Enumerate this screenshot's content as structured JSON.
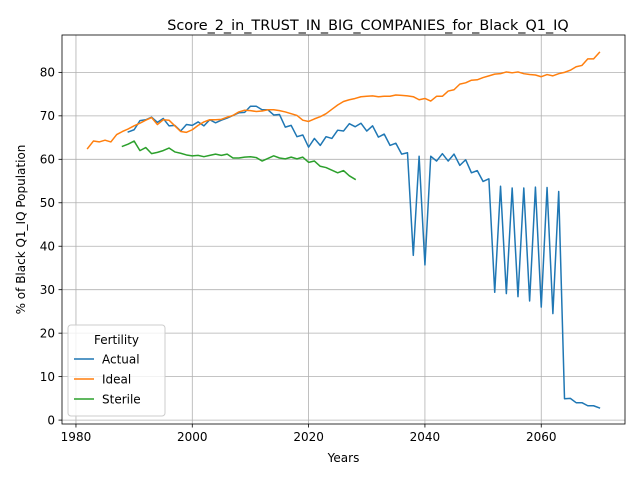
{
  "chart_data": {
    "type": "line",
    "title": "Score_2_in_TRUST_IN_BIG_COMPANIES_for_Black_Q1_IQ",
    "xlabel": "Years",
    "ylabel": "% of Black Q1_IQ Population",
    "xlim": [
      1977.6,
      2074.4
    ],
    "ylim": [
      -0.9,
      88.6
    ],
    "x_ticks": [
      1980,
      2000,
      2020,
      2040,
      2060
    ],
    "y_ticks": [
      0,
      10,
      20,
      30,
      40,
      50,
      60,
      70,
      80
    ],
    "grid": true,
    "legend": {
      "title": "Fertility",
      "placement": "lower-left"
    },
    "series": [
      {
        "name": "Actual",
        "color": "#1f77b4",
        "points": [
          [
            1989,
            66.3
          ],
          [
            1990,
            66.8
          ],
          [
            1991,
            68.9
          ],
          [
            1992,
            69.1
          ],
          [
            1993,
            69.7
          ],
          [
            1994,
            68.5
          ],
          [
            1995,
            69.4
          ],
          [
            1996,
            67.7
          ],
          [
            1997,
            67.8
          ],
          [
            1998,
            66.5
          ],
          [
            1999,
            68.0
          ],
          [
            2000,
            67.8
          ],
          [
            2001,
            68.6
          ],
          [
            2002,
            67.7
          ],
          [
            2003,
            69.1
          ],
          [
            2004,
            68.4
          ],
          [
            2005,
            69.0
          ],
          [
            2006,
            69.5
          ],
          [
            2007,
            70.1
          ],
          [
            2008,
            70.7
          ],
          [
            2009,
            70.8
          ],
          [
            2010,
            72.2
          ],
          [
            2011,
            72.2
          ],
          [
            2012,
            71.4
          ],
          [
            2013,
            71.4
          ],
          [
            2014,
            70.2
          ],
          [
            2015,
            70.3
          ],
          [
            2016,
            67.4
          ],
          [
            2017,
            67.8
          ],
          [
            2018,
            65.2
          ],
          [
            2019,
            65.6
          ],
          [
            2020,
            62.8
          ],
          [
            2021,
            64.8
          ],
          [
            2022,
            63.2
          ],
          [
            2023,
            65.2
          ],
          [
            2024,
            64.8
          ],
          [
            2025,
            66.7
          ],
          [
            2026,
            66.5
          ],
          [
            2027,
            68.2
          ],
          [
            2028,
            67.5
          ],
          [
            2029,
            68.3
          ],
          [
            2030,
            66.5
          ],
          [
            2031,
            67.7
          ],
          [
            2032,
            65.1
          ],
          [
            2033,
            65.8
          ],
          [
            2034,
            63.2
          ],
          [
            2035,
            63.7
          ],
          [
            2036,
            61.2
          ],
          [
            2037,
            61.5
          ],
          [
            2038,
            37.9
          ],
          [
            2039,
            60.7
          ],
          [
            2040,
            35.7
          ],
          [
            2041,
            60.7
          ],
          [
            2042,
            59.6
          ],
          [
            2043,
            61.3
          ],
          [
            2044,
            59.6
          ],
          [
            2045,
            61.2
          ],
          [
            2046,
            58.6
          ],
          [
            2047,
            59.9
          ],
          [
            2048,
            56.9
          ],
          [
            2049,
            57.4
          ],
          [
            2050,
            54.9
          ],
          [
            2051,
            55.5
          ],
          [
            2052,
            29.4
          ],
          [
            2053,
            53.8
          ],
          [
            2054,
            29.1
          ],
          [
            2055,
            53.4
          ],
          [
            2056,
            28.4
          ],
          [
            2057,
            53.4
          ],
          [
            2058,
            27.4
          ],
          [
            2059,
            53.6
          ],
          [
            2060,
            26.0
          ],
          [
            2061,
            53.5
          ],
          [
            2062,
            24.5
          ],
          [
            2063,
            52.6
          ],
          [
            2064,
            4.9
          ],
          [
            2065,
            5.0
          ],
          [
            2066,
            4.0
          ],
          [
            2067,
            4.0
          ],
          [
            2068,
            3.3
          ],
          [
            2069,
            3.3
          ],
          [
            2070,
            2.8
          ]
        ]
      },
      {
        "name": "Ideal",
        "color": "#ff7f0e",
        "points": [
          [
            1982,
            62.5
          ],
          [
            1983,
            64.2
          ],
          [
            1984,
            64.0
          ],
          [
            1985,
            64.4
          ],
          [
            1986,
            64.0
          ],
          [
            1987,
            65.7
          ],
          [
            1988,
            66.4
          ],
          [
            1989,
            67.0
          ],
          [
            1990,
            67.7
          ],
          [
            1991,
            68.3
          ],
          [
            1992,
            69.0
          ],
          [
            1993,
            69.6
          ],
          [
            1994,
            68.0
          ],
          [
            1995,
            69.1
          ],
          [
            1996,
            69.0
          ],
          [
            1997,
            67.7
          ],
          [
            1998,
            66.4
          ],
          [
            1999,
            66.2
          ],
          [
            2000,
            66.8
          ],
          [
            2001,
            67.8
          ],
          [
            2002,
            68.6
          ],
          [
            2003,
            69.1
          ],
          [
            2004,
            69.1
          ],
          [
            2005,
            69.2
          ],
          [
            2006,
            69.7
          ],
          [
            2007,
            70.1
          ],
          [
            2008,
            70.9
          ],
          [
            2009,
            71.3
          ],
          [
            2010,
            71.2
          ],
          [
            2011,
            71.0
          ],
          [
            2012,
            71.1
          ],
          [
            2013,
            71.4
          ],
          [
            2014,
            71.4
          ],
          [
            2015,
            71.2
          ],
          [
            2016,
            70.9
          ],
          [
            2017,
            70.5
          ],
          [
            2018,
            70.1
          ],
          [
            2019,
            69.0
          ],
          [
            2020,
            68.7
          ],
          [
            2021,
            69.3
          ],
          [
            2022,
            69.8
          ],
          [
            2023,
            70.5
          ],
          [
            2024,
            71.5
          ],
          [
            2025,
            72.5
          ],
          [
            2026,
            73.3
          ],
          [
            2027,
            73.7
          ],
          [
            2028,
            74.0
          ],
          [
            2029,
            74.4
          ],
          [
            2030,
            74.5
          ],
          [
            2031,
            74.6
          ],
          [
            2032,
            74.4
          ],
          [
            2033,
            74.5
          ],
          [
            2034,
            74.5
          ],
          [
            2035,
            74.8
          ],
          [
            2036,
            74.7
          ],
          [
            2037,
            74.6
          ],
          [
            2038,
            74.4
          ],
          [
            2039,
            73.7
          ],
          [
            2040,
            74.0
          ],
          [
            2041,
            73.4
          ],
          [
            2042,
            74.5
          ],
          [
            2043,
            74.5
          ],
          [
            2044,
            75.7
          ],
          [
            2045,
            76.0
          ],
          [
            2046,
            77.3
          ],
          [
            2047,
            77.6
          ],
          [
            2048,
            78.2
          ],
          [
            2049,
            78.3
          ],
          [
            2050,
            78.8
          ],
          [
            2051,
            79.2
          ],
          [
            2052,
            79.6
          ],
          [
            2053,
            79.7
          ],
          [
            2054,
            80.1
          ],
          [
            2055,
            79.9
          ],
          [
            2056,
            80.1
          ],
          [
            2057,
            79.7
          ],
          [
            2058,
            79.5
          ],
          [
            2059,
            79.4
          ],
          [
            2060,
            79.0
          ],
          [
            2061,
            79.5
          ],
          [
            2062,
            79.2
          ],
          [
            2063,
            79.7
          ],
          [
            2064,
            80.0
          ],
          [
            2065,
            80.5
          ],
          [
            2066,
            81.3
          ],
          [
            2067,
            81.6
          ],
          [
            2068,
            83.1
          ],
          [
            2069,
            83.1
          ],
          [
            2070,
            84.6
          ]
        ]
      },
      {
        "name": "Sterile",
        "color": "#2ca02c",
        "points": [
          [
            1988,
            63.0
          ],
          [
            1989,
            63.5
          ],
          [
            1990,
            64.2
          ],
          [
            1991,
            62.0
          ],
          [
            1992,
            62.7
          ],
          [
            1993,
            61.3
          ],
          [
            1994,
            61.6
          ],
          [
            1995,
            62.0
          ],
          [
            1996,
            62.6
          ],
          [
            1997,
            61.7
          ],
          [
            1998,
            61.4
          ],
          [
            1999,
            61.0
          ],
          [
            2000,
            60.8
          ],
          [
            2001,
            60.9
          ],
          [
            2002,
            60.6
          ],
          [
            2003,
            60.9
          ],
          [
            2004,
            61.2
          ],
          [
            2005,
            60.9
          ],
          [
            2006,
            61.2
          ],
          [
            2007,
            60.3
          ],
          [
            2008,
            60.3
          ],
          [
            2009,
            60.5
          ],
          [
            2010,
            60.6
          ],
          [
            2011,
            60.4
          ],
          [
            2012,
            59.6
          ],
          [
            2013,
            60.2
          ],
          [
            2014,
            60.8
          ],
          [
            2015,
            60.3
          ],
          [
            2016,
            60.1
          ],
          [
            2017,
            60.5
          ],
          [
            2018,
            60.1
          ],
          [
            2019,
            60.5
          ],
          [
            2020,
            59.3
          ],
          [
            2021,
            59.6
          ],
          [
            2022,
            58.4
          ],
          [
            2023,
            58.1
          ],
          [
            2024,
            57.5
          ],
          [
            2025,
            56.9
          ],
          [
            2026,
            57.4
          ],
          [
            2027,
            56.2
          ],
          [
            2028,
            55.4
          ]
        ]
      }
    ]
  }
}
